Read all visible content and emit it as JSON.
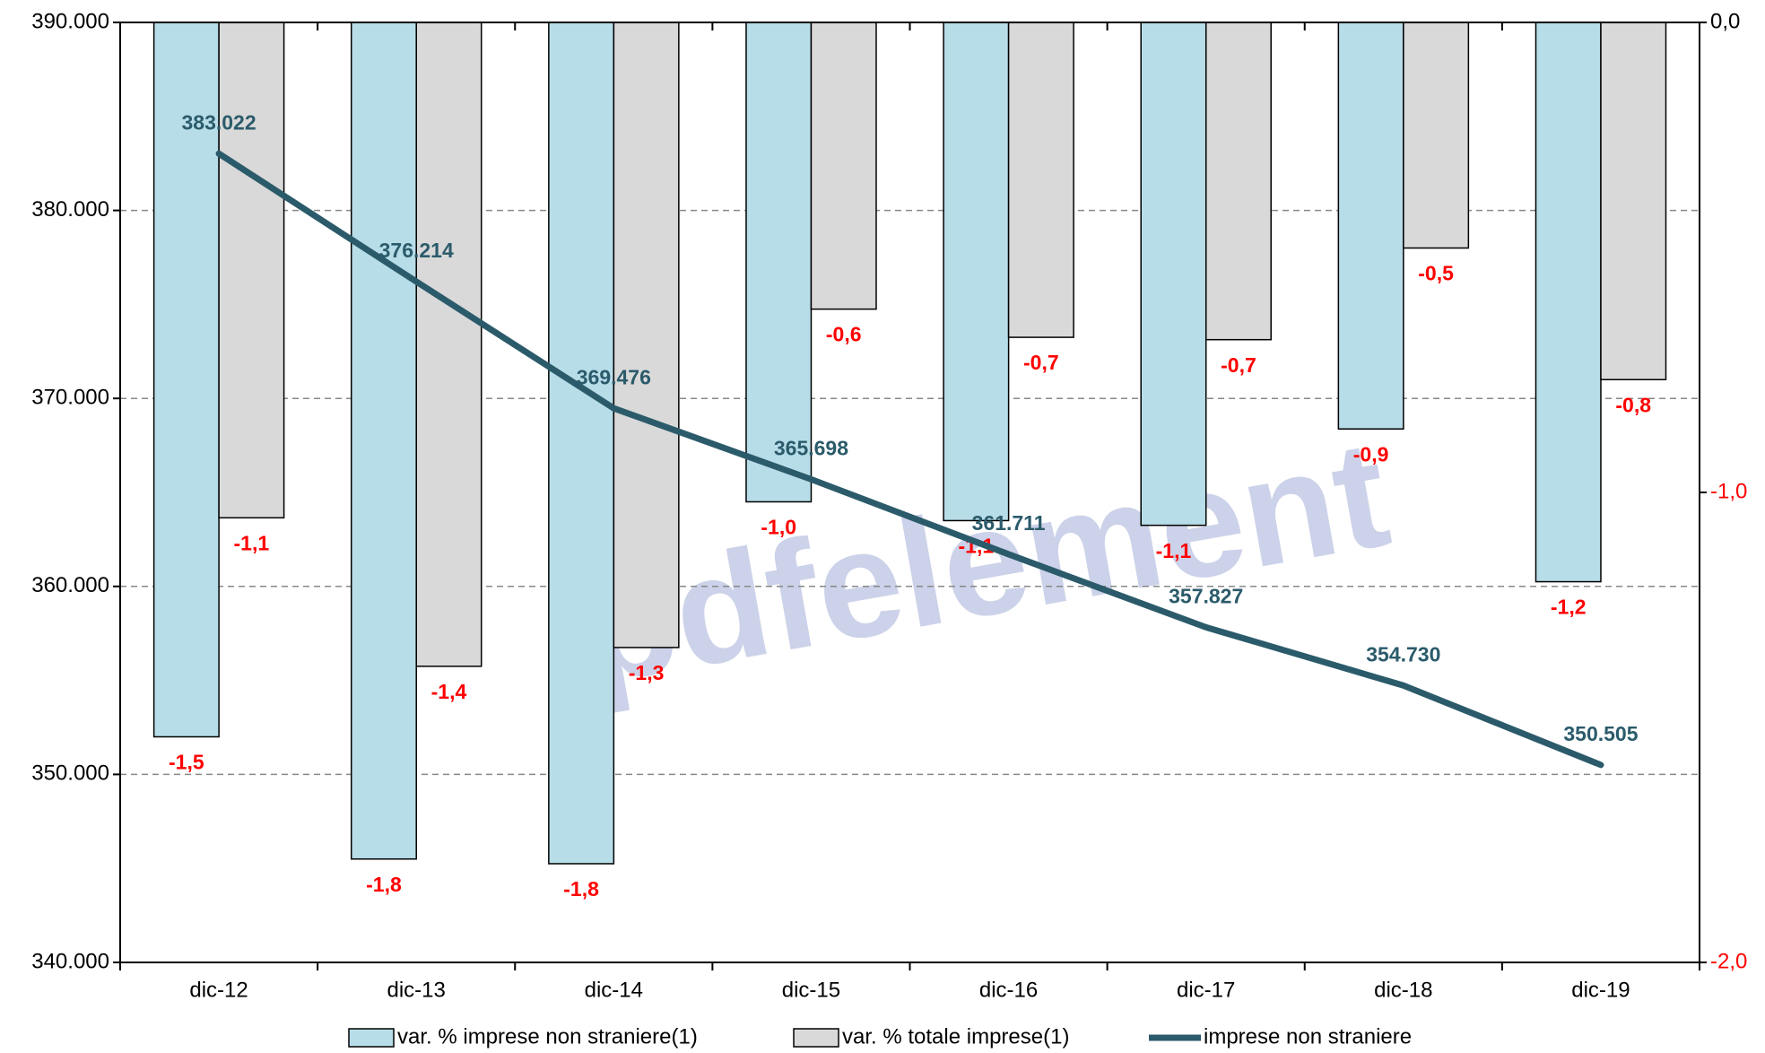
{
  "chart_data": {
    "type": "bar_line",
    "watermark": "pdfelement",
    "categories": [
      "dic-12",
      "dic-13",
      "dic-14",
      "dic-15",
      "dic-16",
      "dic-17",
      "dic-18",
      "dic-19"
    ],
    "series": [
      {
        "name": "var. % imprese non straniere(1)",
        "type": "bar",
        "axis": "y2",
        "color": "#b7dde8",
        "values": [
          -1.52,
          -1.78,
          -1.79,
          -1.02,
          -1.06,
          -1.07,
          -0.865,
          -1.19
        ],
        "value_labels": [
          "-1,5",
          "-1,8",
          "-1,8",
          "-1,0",
          "-1,1",
          "-1,1",
          "-0,9",
          "-1,2"
        ]
      },
      {
        "name": "var. % totale imprese(1)",
        "type": "bar",
        "axis": "y2",
        "color": "#d9d9d9",
        "values": [
          -1.054,
          -1.37,
          -1.33,
          -0.61,
          -0.67,
          -0.675,
          -0.48,
          -0.76
        ],
        "value_labels": [
          "-1,1",
          "-1,4",
          "-1,3",
          "-0,6",
          "-0,7",
          "-0,7",
          "-0,5",
          "-0,8"
        ]
      },
      {
        "name": "imprese non straniere",
        "type": "line",
        "axis": "y",
        "color": "#2b5b6b",
        "values": [
          383022,
          376214,
          369476,
          365698,
          361711,
          357827,
          354730,
          350505
        ],
        "value_labels": [
          "383.022",
          "376.214",
          "369.476",
          "365.698",
          "361.711",
          "357.827",
          "354.730",
          "350.505"
        ]
      }
    ],
    "ylim": [
      340000,
      390000
    ],
    "yticks": [
      {
        "value": 340000,
        "label": "340.000"
      },
      {
        "value": 350000,
        "label": "350.000"
      },
      {
        "value": 360000,
        "label": "360.000"
      },
      {
        "value": 370000,
        "label": "370.000"
      },
      {
        "value": 380000,
        "label": "380.000"
      },
      {
        "value": 390000,
        "label": "390.000"
      }
    ],
    "y2lim": [
      -2,
      0
    ],
    "y2ticks": [
      {
        "value": 0,
        "label": "0,0"
      },
      {
        "value": -1,
        "label": "-1,0"
      },
      {
        "value": -2,
        "label": "-2,0"
      }
    ],
    "grid": true,
    "legend": "bottom"
  }
}
